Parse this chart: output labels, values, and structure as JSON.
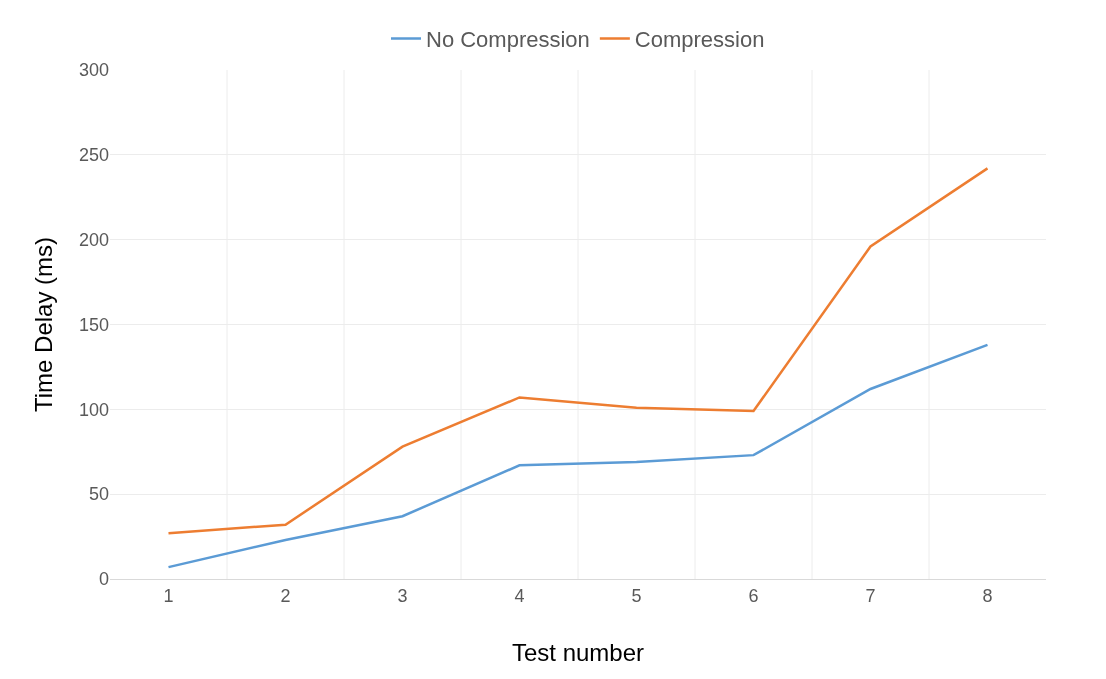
{
  "chart_data": {
    "type": "line",
    "xlabel": "Test number",
    "ylabel": "Time Delay (ms)",
    "categories": [
      "1",
      "2",
      "3",
      "4",
      "5",
      "6",
      "7",
      "8"
    ],
    "series": [
      {
        "name": "No Compression",
        "color": "#5b9bd5",
        "values": [
          7,
          23,
          37,
          67,
          69,
          73,
          112,
          138
        ]
      },
      {
        "name": "Compression",
        "color": "#ed7d31",
        "values": [
          27,
          32,
          78,
          107,
          101,
          99,
          196,
          242
        ]
      }
    ],
    "ylim": [
      0,
      300
    ],
    "yticks": [
      0,
      50,
      100,
      150,
      200,
      250,
      300
    ],
    "grid": true,
    "legend": "top",
    "marker": "none",
    "line_style": "solid"
  }
}
